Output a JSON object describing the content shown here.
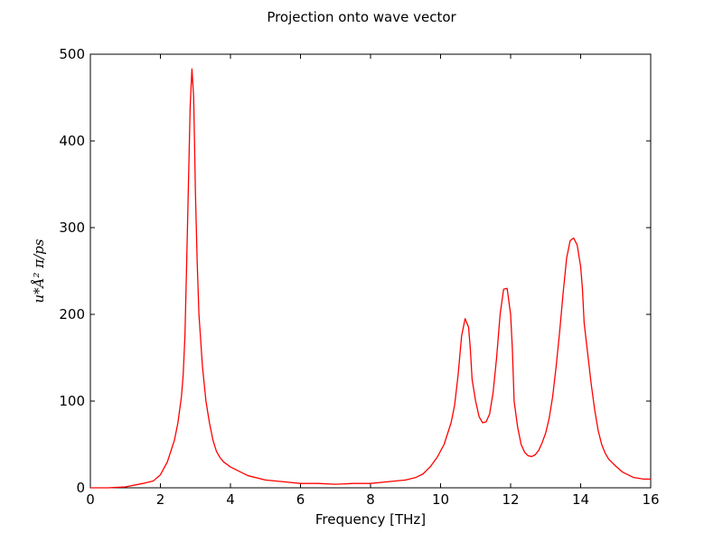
{
  "chart_data": {
    "type": "line",
    "title": "Projection onto wave vector",
    "xlabel": "Frequency [THz]",
    "ylabel": "u*Å² π/ps",
    "xlim": [
      0,
      16
    ],
    "ylim": [
      0,
      500
    ],
    "xticks": [
      0,
      2,
      4,
      6,
      8,
      10,
      12,
      14,
      16
    ],
    "yticks": [
      0,
      100,
      200,
      300,
      400,
      500
    ],
    "grid": false,
    "series": [
      {
        "color": "#ff0000",
        "x": [
          0,
          0.5,
          1.0,
          1.5,
          1.8,
          2.0,
          2.2,
          2.4,
          2.5,
          2.6,
          2.65,
          2.7,
          2.75,
          2.8,
          2.85,
          2.9,
          2.95,
          3.0,
          3.05,
          3.1,
          3.2,
          3.3,
          3.4,
          3.5,
          3.6,
          3.7,
          3.8,
          4.0,
          4.2,
          4.5,
          5.0,
          5.5,
          6.0,
          6.5,
          7.0,
          7.5,
          8.0,
          8.5,
          9.0,
          9.3,
          9.5,
          9.7,
          9.9,
          10.1,
          10.3,
          10.4,
          10.5,
          10.6,
          10.7,
          10.8,
          10.85,
          10.9,
          11.0,
          11.1,
          11.2,
          11.3,
          11.4,
          11.5,
          11.6,
          11.7,
          11.8,
          11.9,
          12.0,
          12.05,
          12.1,
          12.2,
          12.3,
          12.4,
          12.5,
          12.6,
          12.7,
          12.8,
          12.9,
          13.0,
          13.1,
          13.2,
          13.3,
          13.4,
          13.5,
          13.6,
          13.7,
          13.8,
          13.9,
          14.0,
          14.05,
          14.1,
          14.2,
          14.3,
          14.4,
          14.5,
          14.6,
          14.7,
          14.8,
          15.0,
          15.2,
          15.5,
          15.8,
          16.0
        ],
        "y": [
          0,
          0,
          1,
          5,
          8,
          15,
          30,
          55,
          75,
          105,
          130,
          175,
          260,
          350,
          440,
          483,
          450,
          340,
          260,
          200,
          140,
          100,
          75,
          55,
          42,
          35,
          30,
          24,
          20,
          14,
          9,
          7,
          5,
          5,
          4,
          5,
          5,
          7,
          9,
          12,
          16,
          24,
          35,
          50,
          75,
          95,
          130,
          175,
          195,
          185,
          160,
          125,
          100,
          82,
          75,
          76,
          85,
          110,
          150,
          200,
          229,
          230,
          200,
          160,
          100,
          70,
          50,
          41,
          37,
          36,
          38,
          43,
          52,
          63,
          80,
          105,
          140,
          180,
          225,
          265,
          285,
          288,
          280,
          255,
          230,
          190,
          155,
          120,
          90,
          66,
          50,
          40,
          33,
          25,
          18,
          12,
          10,
          10
        ]
      }
    ]
  }
}
